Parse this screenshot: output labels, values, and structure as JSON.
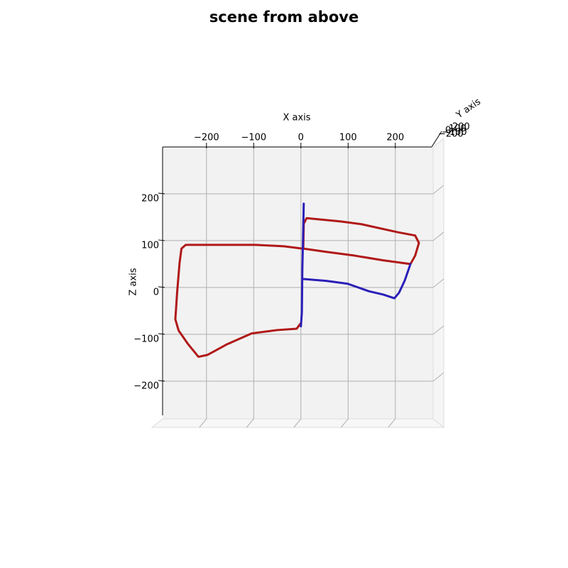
{
  "chart_data": {
    "type": "line",
    "title": "scene from above",
    "xlabel": "X axis",
    "ylabel": "Z axis",
    "depth_label": "Y axis",
    "depth_ticks": [
      {
        "value": -200,
        "label": "−200"
      },
      {
        "value": -100,
        "label": "−100"
      },
      0,
      100,
      200
    ],
    "xlim": [
      -293,
      277
    ],
    "ylim": [
      -273,
      300
    ],
    "xticks": [
      {
        "value": -200,
        "label": "−200"
      },
      {
        "value": -100,
        "label": "−100"
      },
      0,
      100,
      200
    ],
    "yticks": [
      {
        "value": -200,
        "label": "−200"
      },
      {
        "value": -100,
        "label": "−100"
      },
      0,
      100,
      200
    ],
    "grid": true,
    "series": [
      {
        "color": "#b01818",
        "x": [
          3,
          -36,
          -96,
          -186,
          -244,
          -253,
          -257,
          -262,
          -266,
          -259,
          -239,
          -217,
          -198,
          -156,
          -104,
          -51,
          -9,
          0,
          null,
          5,
          6,
          12,
          84,
          129,
          205,
          242,
          250,
          242,
          232,
          174,
          114,
          54,
          5
        ],
        "values": [
          83,
          88,
          91,
          91,
          91,
          83,
          53,
          -8,
          -68,
          -92,
          -121,
          -148,
          -144,
          -121,
          -98,
          -91,
          -88,
          -76,
          null,
          83,
          136,
          148,
          141,
          135,
          118,
          111,
          95,
          68,
          50,
          58,
          68,
          76,
          83
        ]
      },
      {
        "color": "#2a1fb8",
        "x": [
          6,
          5,
          3,
          2,
          0,
          null,
          6,
          54,
          99,
          144,
          174,
          198,
          208,
          220,
          232
        ],
        "values": [
          179,
          129,
          38,
          -53,
          -83,
          null,
          18,
          14,
          8,
          -8,
          -15,
          -23,
          -11,
          15,
          50
        ]
      }
    ]
  }
}
